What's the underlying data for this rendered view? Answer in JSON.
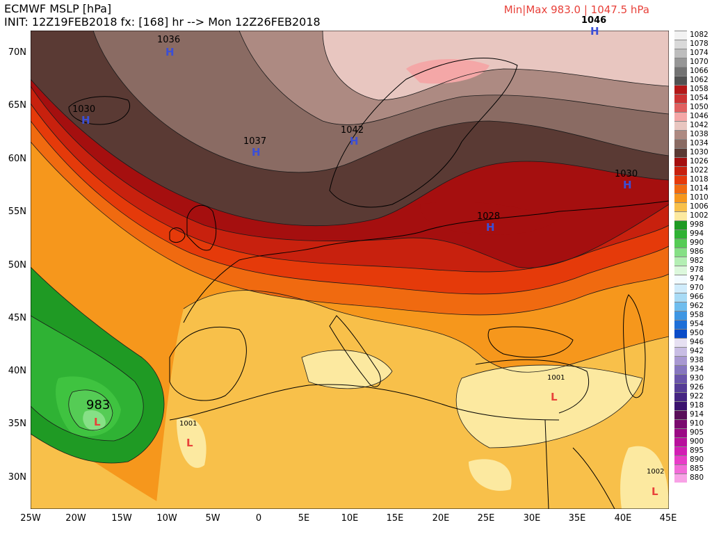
{
  "header": {
    "product": "ECMWF MSLP [hPa]",
    "init_line": "INIT: 12Z19FEB2018 fx: [168] hr --> Mon 12Z26FEB2018",
    "minmax": "Min|Max 983.0 | 1047.5 hPa",
    "minmax_color": "#e8413a"
  },
  "map": {
    "lat_labels": [
      "70N",
      "65N",
      "60N",
      "55N",
      "50N",
      "45N",
      "40N",
      "35N",
      "30N"
    ],
    "lon_labels": [
      "25W",
      "20W",
      "15W",
      "10W",
      "5W",
      "0",
      "5E",
      "10E",
      "15E",
      "20E",
      "25E",
      "30E",
      "35E",
      "40E",
      "45E"
    ],
    "pressure_centers": [
      {
        "type": "H",
        "value": "1036"
      },
      {
        "type": "H",
        "value": "1030"
      },
      {
        "type": "H",
        "value": "1037"
      },
      {
        "type": "H",
        "value": "1042"
      },
      {
        "type": "H",
        "value": "1046"
      },
      {
        "type": "H",
        "value": "1028"
      },
      {
        "type": "H",
        "value": "1030"
      },
      {
        "type": "L",
        "value": "983"
      },
      {
        "type": "L",
        "value": "1001"
      },
      {
        "type": "L",
        "value": "1001"
      },
      {
        "type": "L",
        "value": "1002"
      }
    ],
    "high_color": "#3b4fd6",
    "low_color": "#e8413a"
  },
  "legend": {
    "entries": [
      {
        "value": "1082",
        "color": "#f2f2f2"
      },
      {
        "value": "1078",
        "color": "#d9d9d9"
      },
      {
        "value": "1074",
        "color": "#bdbdbd"
      },
      {
        "value": "1070",
        "color": "#969696"
      },
      {
        "value": "1066",
        "color": "#737373"
      },
      {
        "value": "1062",
        "color": "#525252"
      },
      {
        "value": "1058",
        "color": "#b41818"
      },
      {
        "value": "1054",
        "color": "#cc3333"
      },
      {
        "value": "1050",
        "color": "#e06060"
      },
      {
        "value": "1046",
        "color": "#f4a7a7"
      },
      {
        "value": "1042",
        "color": "#e8c6c0"
      },
      {
        "value": "1038",
        "color": "#ad8a82"
      },
      {
        "value": "1034",
        "color": "#8a6b63"
      },
      {
        "value": "1030",
        "color": "#5a3a34"
      },
      {
        "value": "1026",
        "color": "#a50f0f"
      },
      {
        "value": "1022",
        "color": "#c8210e"
      },
      {
        "value": "1018",
        "color": "#e53a0a"
      },
      {
        "value": "1014",
        "color": "#f06a10"
      },
      {
        "value": "1010",
        "color": "#f6971c"
      },
      {
        "value": "1006",
        "color": "#f8c04a"
      },
      {
        "value": "1002",
        "color": "#fce9a0"
      },
      {
        "value": "998",
        "color": "#1f9a24"
      },
      {
        "value": "994",
        "color": "#2fb234"
      },
      {
        "value": "990",
        "color": "#55cc55"
      },
      {
        "value": "986",
        "color": "#86e086"
      },
      {
        "value": "982",
        "color": "#b4efb4"
      },
      {
        "value": "978",
        "color": "#dcf8dc"
      },
      {
        "value": "974",
        "color": "#f2fbff"
      },
      {
        "value": "970",
        "color": "#d0ecfc"
      },
      {
        "value": "966",
        "color": "#a8dbf6"
      },
      {
        "value": "962",
        "color": "#6fbdee"
      },
      {
        "value": "958",
        "color": "#3e96e3"
      },
      {
        "value": "954",
        "color": "#1e6fd8"
      },
      {
        "value": "950",
        "color": "#0a4cc8"
      },
      {
        "value": "946",
        "color": "#e6e0f2"
      },
      {
        "value": "942",
        "color": "#c8bde4"
      },
      {
        "value": "938",
        "color": "#a898d2"
      },
      {
        "value": "934",
        "color": "#8676bf"
      },
      {
        "value": "930",
        "color": "#6a55aa"
      },
      {
        "value": "926",
        "color": "#553c96"
      },
      {
        "value": "922",
        "color": "#452482"
      },
      {
        "value": "918",
        "color": "#3a126e"
      },
      {
        "value": "914",
        "color": "#5a0f5a"
      },
      {
        "value": "910",
        "color": "#7a0a6e"
      },
      {
        "value": "905",
        "color": "#9a0a84"
      },
      {
        "value": "900",
        "color": "#b8109c"
      },
      {
        "value": "895",
        "color": "#d21eb4"
      },
      {
        "value": "890",
        "color": "#e83cc8"
      },
      {
        "value": "885",
        "color": "#f26ad8"
      },
      {
        "value": "880",
        "color": "#f8a2e6"
      }
    ]
  }
}
